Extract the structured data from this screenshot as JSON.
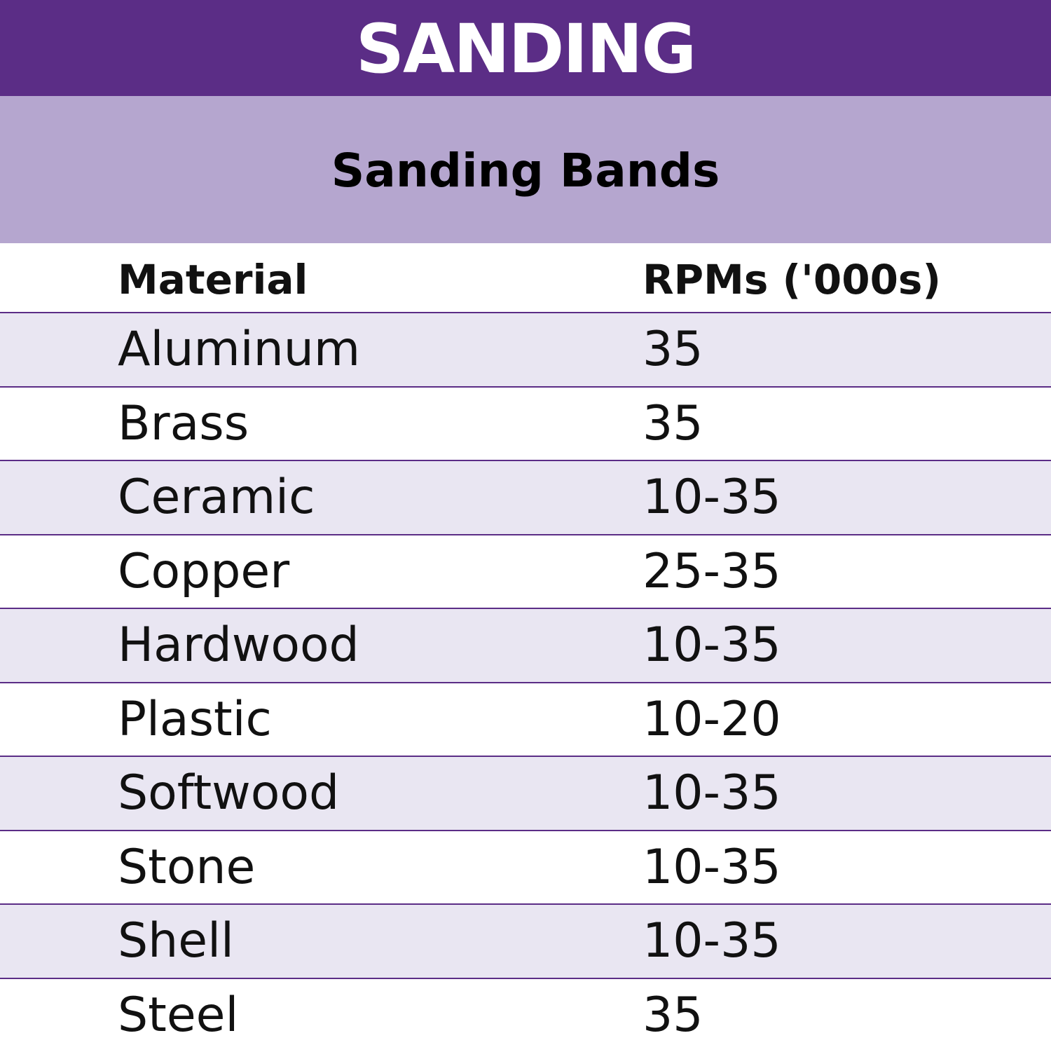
{
  "header": {
    "title": "SANDING",
    "subtitle": "Sanding Bands"
  },
  "table": {
    "columns": [
      "Material",
      "RPMs ('000s)"
    ],
    "rows": [
      [
        "Aluminum",
        "35"
      ],
      [
        "Brass",
        "35"
      ],
      [
        "Ceramic",
        "10-35"
      ],
      [
        "Copper",
        "25-35"
      ],
      [
        "Hardwood",
        "10-35"
      ],
      [
        "Plastic",
        "10-20"
      ],
      [
        "Softwood",
        "10-35"
      ],
      [
        "Stone",
        "10-35"
      ],
      [
        "Shell",
        "10-35"
      ],
      [
        "Steel",
        "35"
      ]
    ]
  }
}
